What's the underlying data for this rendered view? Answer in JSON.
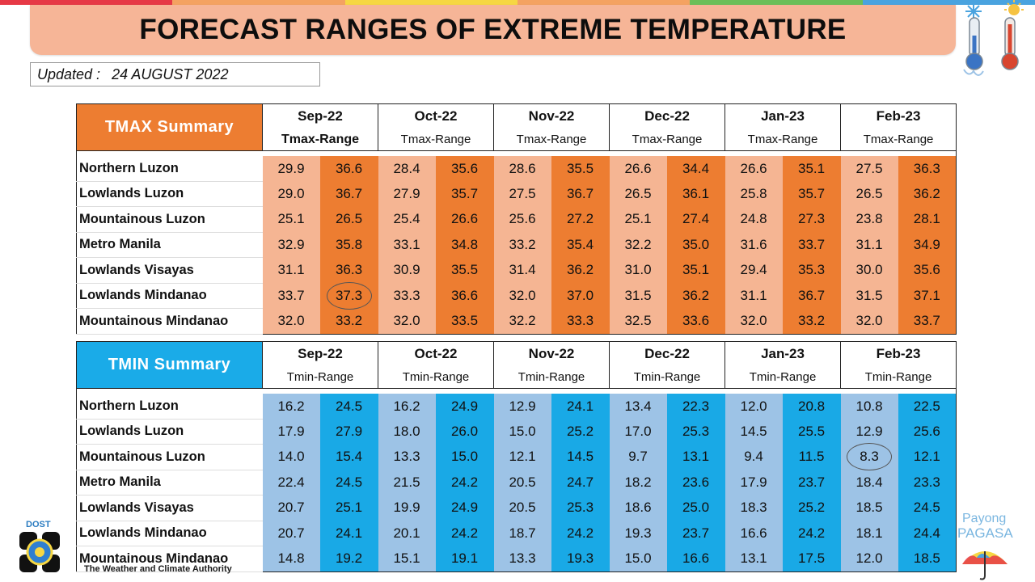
{
  "title": "FORECAST RANGES OF EXTREME TEMPERATURE",
  "updated": {
    "label": "Updated :",
    "date": "24 AUGUST 2022"
  },
  "months": [
    "Sep-22",
    "Oct-22",
    "Nov-22",
    "Dec-22",
    "Jan-23",
    "Feb-23"
  ],
  "tmax": {
    "title": "TMAX Summary",
    "range_label": "Tmax-Range",
    "regions": [
      {
        "name": "Northern Luzon",
        "values": [
          "29.9",
          "36.6",
          "28.4",
          "35.6",
          "28.6",
          "35.5",
          "26.6",
          "34.4",
          "26.6",
          "35.1",
          "27.5",
          "36.3"
        ]
      },
      {
        "name": "Lowlands Luzon",
        "values": [
          "29.0",
          "36.7",
          "27.9",
          "35.7",
          "27.5",
          "36.7",
          "26.5",
          "36.1",
          "25.8",
          "35.7",
          "26.5",
          "36.2"
        ]
      },
      {
        "name": "Mountainous Luzon",
        "values": [
          "25.1",
          "26.5",
          "25.4",
          "26.6",
          "25.6",
          "27.2",
          "25.1",
          "27.4",
          "24.8",
          "27.3",
          "23.8",
          "28.1"
        ]
      },
      {
        "name": "Metro Manila",
        "values": [
          "32.9",
          "35.8",
          "33.1",
          "34.8",
          "33.2",
          "35.4",
          "32.2",
          "35.0",
          "31.6",
          "33.7",
          "31.1",
          "34.9"
        ]
      },
      {
        "name": "Lowlands Visayas",
        "values": [
          "31.1",
          "36.3",
          "30.9",
          "35.5",
          "31.4",
          "36.2",
          "31.0",
          "35.1",
          "29.4",
          "35.3",
          "30.0",
          "35.6"
        ]
      },
      {
        "name": "Lowlands Mindanao",
        "values": [
          "33.7",
          "37.3",
          "33.3",
          "36.6",
          "32.0",
          "37.0",
          "31.5",
          "36.2",
          "31.1",
          "36.7",
          "31.5",
          "37.1"
        ]
      },
      {
        "name": "Mountainous Mindanao",
        "values": [
          "32.0",
          "33.2",
          "32.0",
          "33.5",
          "32.2",
          "33.3",
          "32.5",
          "33.6",
          "32.0",
          "33.2",
          "32.0",
          "33.7"
        ]
      }
    ]
  },
  "tmin": {
    "title": "TMIN Summary",
    "range_label": "Tmin-Range",
    "regions": [
      {
        "name": "Northern Luzon",
        "values": [
          "16.2",
          "24.5",
          "16.2",
          "24.9",
          "12.9",
          "24.1",
          "13.4",
          "22.3",
          "12.0",
          "20.8",
          "10.8",
          "22.5"
        ]
      },
      {
        "name": "Lowlands Luzon",
        "values": [
          "17.9",
          "27.9",
          "18.0",
          "26.0",
          "15.0",
          "25.2",
          "17.0",
          "25.3",
          "14.5",
          "25.5",
          "12.9",
          "25.6"
        ]
      },
      {
        "name": "Mountainous Luzon",
        "values": [
          "14.0",
          "15.4",
          "13.3",
          "15.0",
          "12.1",
          "14.5",
          "9.7",
          "13.1",
          "9.4",
          "11.5",
          "8.3",
          "12.1"
        ]
      },
      {
        "name": "Metro Manila",
        "values": [
          "22.4",
          "24.5",
          "21.5",
          "24.2",
          "20.5",
          "24.7",
          "18.2",
          "23.6",
          "17.9",
          "23.7",
          "18.4",
          "23.3"
        ]
      },
      {
        "name": "Lowlands Visayas",
        "values": [
          "20.7",
          "25.1",
          "19.9",
          "24.9",
          "20.5",
          "25.3",
          "18.6",
          "25.0",
          "18.3",
          "25.2",
          "18.5",
          "24.5"
        ]
      },
      {
        "name": "Lowlands Mindanao",
        "values": [
          "20.7",
          "24.1",
          "20.1",
          "24.2",
          "18.7",
          "24.2",
          "19.3",
          "23.7",
          "16.6",
          "24.2",
          "18.1",
          "24.4"
        ]
      },
      {
        "name": "Mountainous Mindanao",
        "values": [
          "14.8",
          "19.2",
          "15.1",
          "19.1",
          "13.3",
          "19.3",
          "15.0",
          "16.6",
          "13.1",
          "17.5",
          "12.0",
          "18.5"
        ]
      }
    ]
  },
  "highlights": {
    "tmax": {
      "region": 5,
      "col": 1
    },
    "tmin": {
      "region": 2,
      "col": 10
    }
  },
  "logos": {
    "dost_label": "DOST",
    "dost_tagline": "The Weather and Climate Authority",
    "payong_line1": "Payong",
    "payong_line2": "PAGASA"
  },
  "colors": {
    "title_bg": "#f6b597",
    "tmax_title": "#ed7d31",
    "tmax_low": "#f5b593",
    "tmax_high": "#ed7d31",
    "tmin_title": "#1aabe8",
    "tmin_low": "#9dc3e6",
    "tmin_high": "#19a9e6"
  }
}
